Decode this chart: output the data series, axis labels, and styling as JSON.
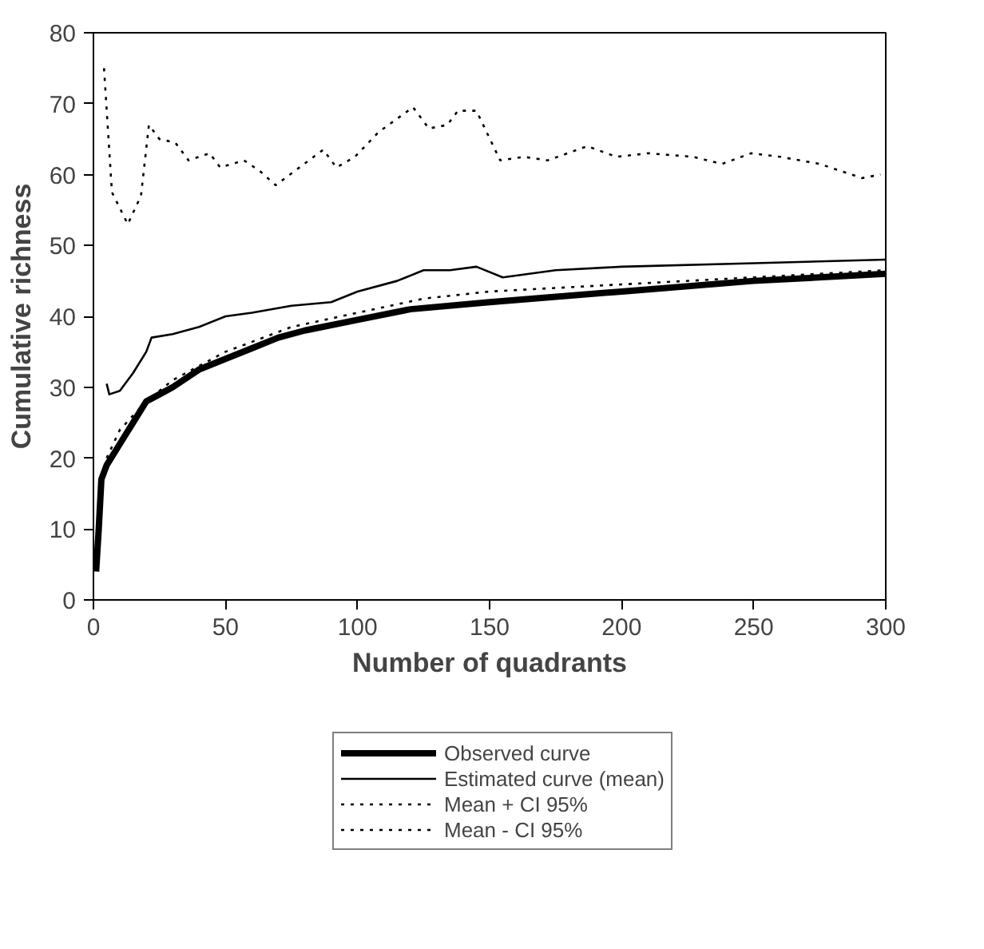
{
  "chart_data": {
    "type": "line",
    "xlabel": "Number of quadrants",
    "ylabel": "Cumulative richness",
    "xlim": [
      0,
      300
    ],
    "xticks": [
      0,
      50,
      100,
      150,
      200,
      250,
      300
    ],
    "ylim": [
      0,
      80
    ],
    "yticks": [
      0,
      10,
      20,
      30,
      40,
      50,
      60,
      70,
      80
    ],
    "grid": false,
    "legend": "bottom",
    "marker": "none",
    "series": [
      {
        "name": "Observed curve",
        "color": "#000000",
        "line_style": "solid",
        "x": [
          1,
          2,
          3,
          5,
          10,
          15,
          20,
          25,
          30,
          40,
          50,
          60,
          70,
          80,
          100,
          120,
          150,
          200,
          250,
          300
        ],
        "values": [
          4,
          10,
          17,
          19,
          22,
          25,
          28,
          29,
          30,
          32.5,
          34,
          35.5,
          37,
          38,
          39.5,
          41,
          42,
          43.5,
          45,
          46
        ]
      },
      {
        "name": "Estimated curve (mean)",
        "color": "#000000",
        "line_style": "solid",
        "x": [
          5,
          6,
          10,
          15,
          20,
          22,
          30,
          40,
          50,
          60,
          75,
          90,
          100,
          115,
          125,
          135,
          145,
          155,
          175,
          200,
          250,
          300
        ],
        "values": [
          30.5,
          29,
          29.5,
          32,
          35,
          37,
          37.5,
          38.5,
          40,
          40.5,
          41.5,
          42,
          43.5,
          45,
          46.5,
          46.5,
          47,
          45.5,
          46.5,
          47,
          47.5,
          48
        ]
      },
      {
        "name": "Mean + CI 95%",
        "color": "#000000",
        "line_style": "dotted",
        "x": [
          4,
          7,
          13,
          18,
          21,
          25,
          31,
          36,
          44,
          48,
          57,
          63,
          69,
          78,
          87,
          92,
          99,
          108,
          121,
          127,
          134,
          138,
          145,
          154,
          163,
          172,
          187,
          198,
          210,
          227,
          238,
          249,
          260,
          275,
          291,
          298
        ],
        "values": [
          75,
          57.5,
          53,
          57,
          67,
          65,
          64.5,
          62,
          63,
          61,
          62,
          60.5,
          58.5,
          61,
          63.5,
          61,
          62.5,
          66,
          69.5,
          66.5,
          67,
          69,
          69,
          62,
          62.5,
          62,
          64,
          62.5,
          63,
          62.5,
          61.5,
          63,
          62.5,
          61.5,
          59.5,
          60
        ]
      },
      {
        "name": "Mean - CI 95%",
        "color": "#000000",
        "line_style": "dotted",
        "x": [
          5,
          10,
          20,
          30,
          50,
          75,
          100,
          125,
          150,
          200,
          250,
          300
        ],
        "values": [
          20,
          24,
          28,
          31,
          35,
          38.5,
          40.5,
          42.5,
          43.5,
          44.5,
          45.5,
          46.5
        ]
      }
    ]
  }
}
